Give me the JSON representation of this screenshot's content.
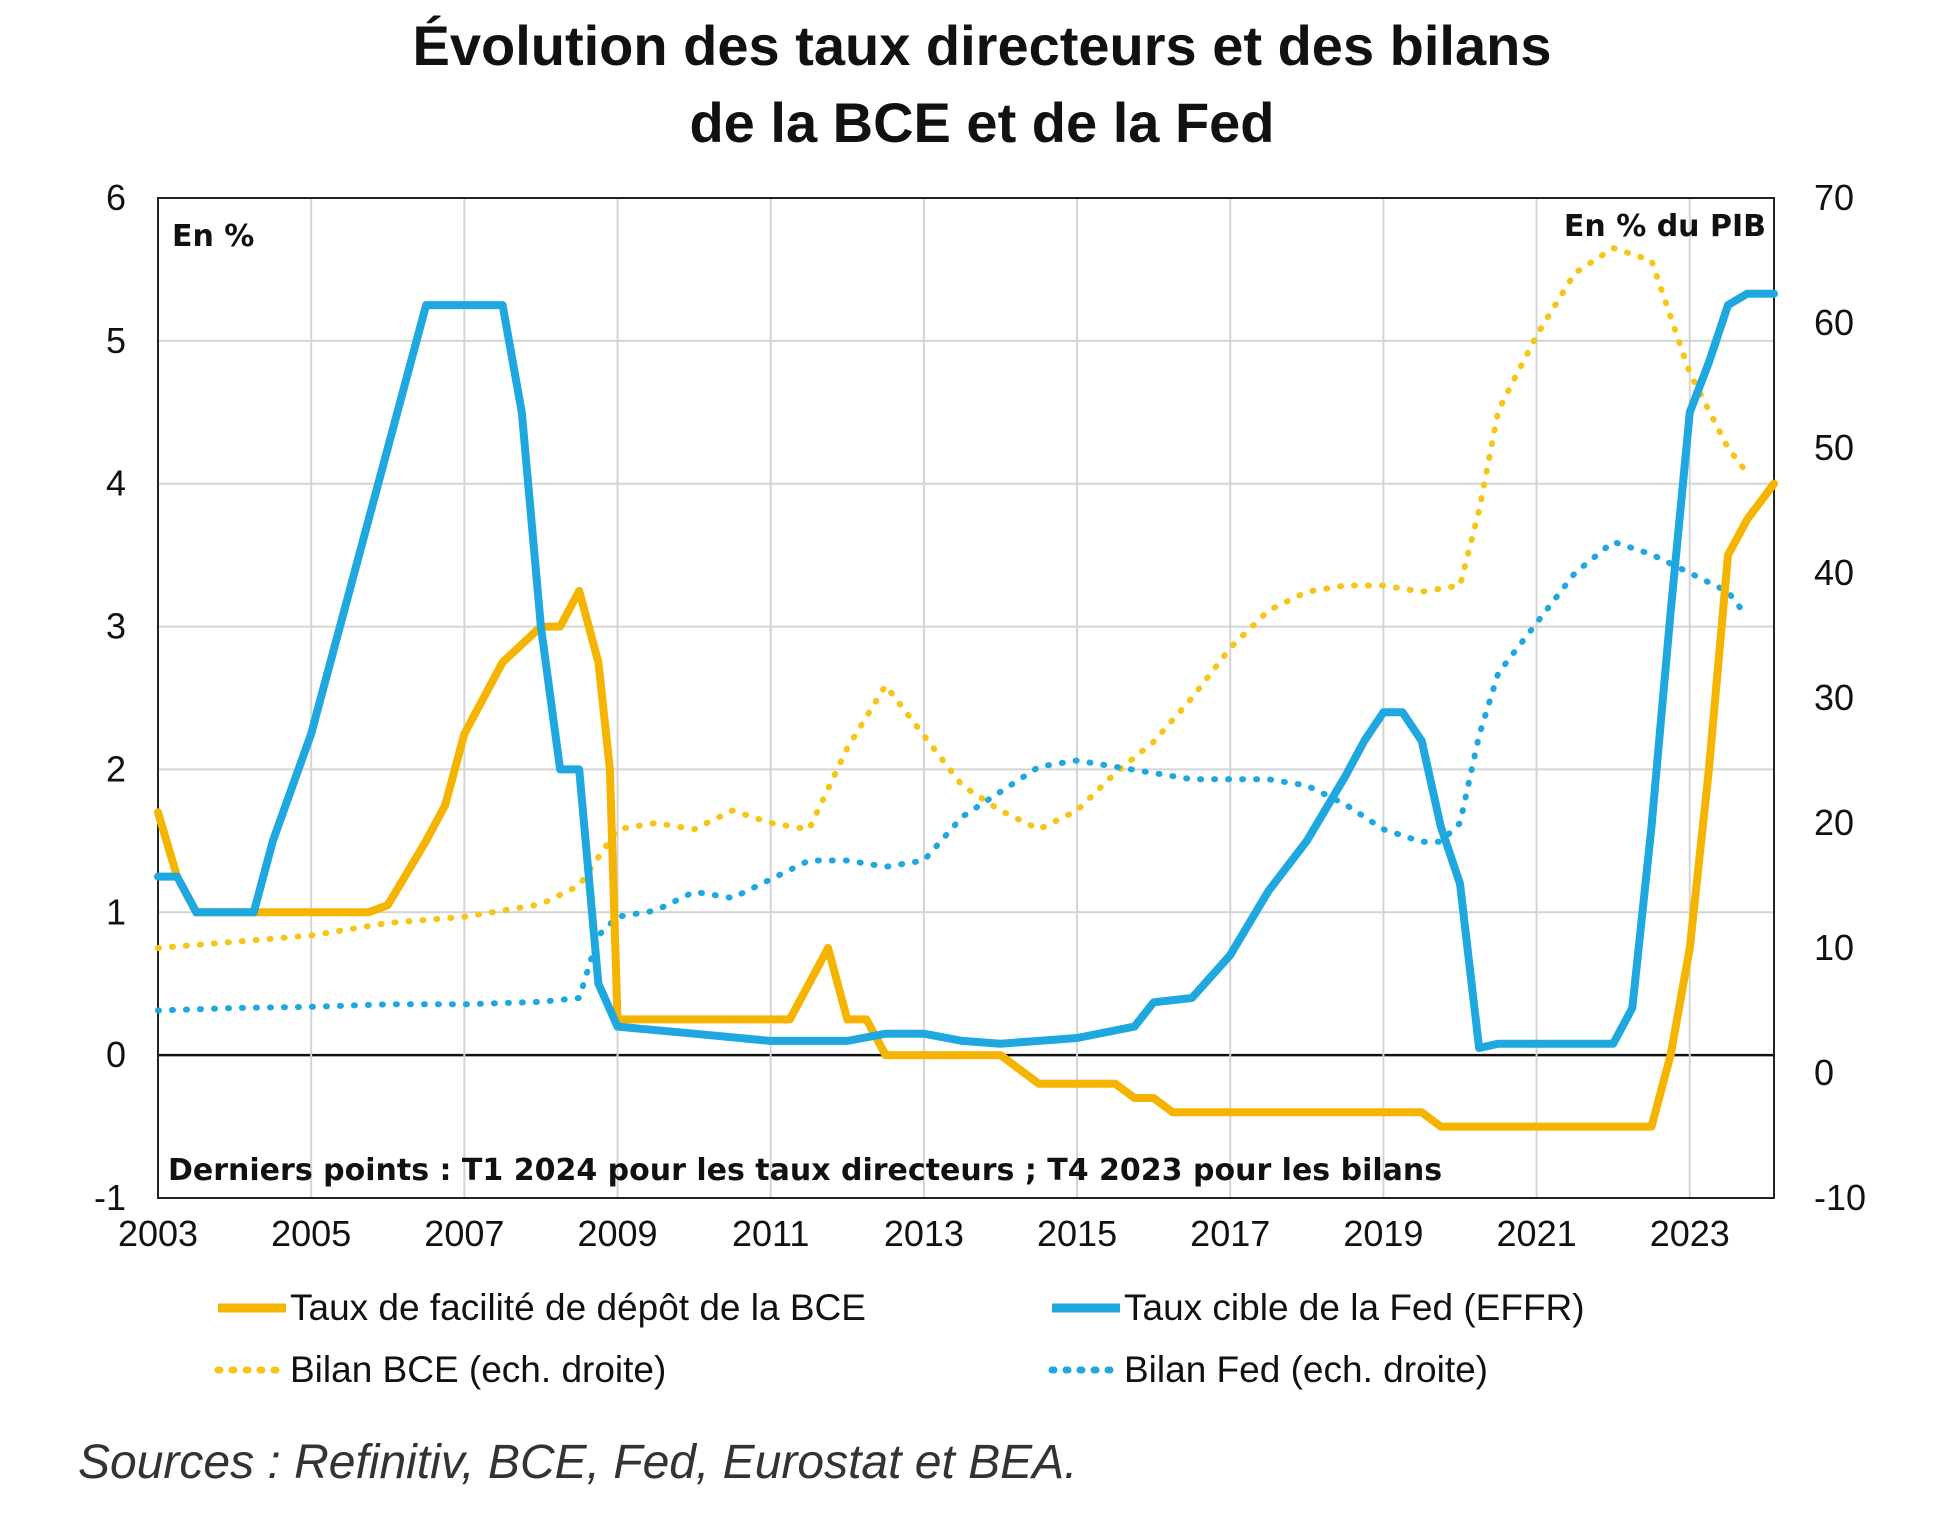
{
  "chart_data": {
    "type": "line",
    "title_line1": "Évolution des taux directeurs et des bilans",
    "title_line2": "de la BCE et de la Fed",
    "left_unit": "En %",
    "right_unit": "En % du PIB",
    "note": "Derniers points : T1 2024 pour les taux directeurs ; T4 2023 pour les bilans",
    "source": "Sources : Refinitiv, BCE, Fed, Eurostat et BEA.",
    "x_ticks": [
      "2003",
      "2005",
      "2007",
      "2009",
      "2011",
      "2013",
      "2015",
      "2017",
      "2019",
      "2021",
      "2023"
    ],
    "xlim": [
      2003,
      2024.1
    ],
    "y_left_ticks": [
      "6",
      "5",
      "4",
      "3",
      "2",
      "1",
      "0",
      "-1"
    ],
    "y_left_lim": [
      -1,
      6
    ],
    "y_right_ticks": [
      "70",
      "60",
      "50",
      "40",
      "30",
      "20",
      "10",
      "0",
      "-10"
    ],
    "y_right_lim": [
      -10,
      70
    ],
    "grid": true,
    "legend_position": "bottom",
    "series": [
      {
        "name": "Taux de facilité de dépôt de la BCE",
        "axis": "left",
        "style": "solid",
        "color": "#f5b400",
        "x": [
          2003.0,
          2003.25,
          2003.5,
          2004.0,
          2005.0,
          2005.75,
          2006.0,
          2006.5,
          2006.75,
          2007.0,
          2007.5,
          2008.0,
          2008.25,
          2008.5,
          2008.75,
          2008.9,
          2009.0,
          2009.25,
          2010.0,
          2011.0,
          2011.25,
          2011.5,
          2011.75,
          2012.0,
          2012.25,
          2012.5,
          2012.75,
          2013.0,
          2013.5,
          2014.0,
          2014.25,
          2014.5,
          2014.75,
          2015.0,
          2015.5,
          2015.75,
          2016.0,
          2016.25,
          2016.5,
          2017.0,
          2018.0,
          2019.0,
          2019.5,
          2019.75,
          2020.0,
          2021.0,
          2022.0,
          2022.5,
          2022.75,
          2023.0,
          2023.25,
          2023.5,
          2023.75,
          2024.1
        ],
        "values": [
          1.7,
          1.25,
          1.0,
          1.0,
          1.0,
          1.0,
          1.05,
          1.5,
          1.75,
          2.25,
          2.75,
          3.0,
          3.0,
          3.25,
          2.75,
          2.0,
          0.25,
          0.25,
          0.25,
          0.25,
          0.25,
          0.5,
          0.75,
          0.25,
          0.25,
          0.0,
          0.0,
          0.0,
          0.0,
          0.0,
          -0.1,
          -0.2,
          -0.2,
          -0.2,
          -0.2,
          -0.3,
          -0.3,
          -0.4,
          -0.4,
          -0.4,
          -0.4,
          -0.4,
          -0.4,
          -0.5,
          -0.5,
          -0.5,
          -0.5,
          -0.5,
          0.0,
          0.75,
          2.0,
          3.5,
          3.75,
          4.0
        ]
      },
      {
        "name": "Taux cible de la Fed (EFFR)",
        "axis": "left",
        "style": "solid",
        "color": "#1fa8df",
        "x": [
          2003.0,
          2003.25,
          2003.5,
          2004.25,
          2004.5,
          2005.0,
          2005.5,
          2006.0,
          2006.5,
          2007.0,
          2007.5,
          2007.75,
          2008.0,
          2008.25,
          2008.5,
          2008.75,
          2009.0,
          2010.0,
          2011.0,
          2011.5,
          2012.0,
          2012.5,
          2013.0,
          2013.5,
          2014.0,
          2014.5,
          2015.0,
          2015.75,
          2016.0,
          2016.5,
          2017.0,
          2017.5,
          2018.0,
          2018.5,
          2018.75,
          2019.0,
          2019.25,
          2019.5,
          2019.75,
          2020.0,
          2020.25,
          2020.5,
          2021.0,
          2021.5,
          2022.0,
          2022.25,
          2022.5,
          2022.75,
          2023.0,
          2023.25,
          2023.5,
          2023.75,
          2024.1
        ],
        "values": [
          1.25,
          1.25,
          1.0,
          1.0,
          1.5,
          2.25,
          3.25,
          4.25,
          5.25,
          5.25,
          5.25,
          4.5,
          3.0,
          2.0,
          2.0,
          0.5,
          0.2,
          0.15,
          0.1,
          0.1,
          0.1,
          0.15,
          0.15,
          0.1,
          0.08,
          0.1,
          0.12,
          0.2,
          0.37,
          0.4,
          0.7,
          1.15,
          1.5,
          1.95,
          2.2,
          2.4,
          2.4,
          2.2,
          1.6,
          1.2,
          0.05,
          0.08,
          0.08,
          0.08,
          0.08,
          0.33,
          1.6,
          3.1,
          4.5,
          4.85,
          5.25,
          5.33,
          5.33
        ]
      },
      {
        "name": "Bilan BCE (ech. droite)",
        "axis": "right",
        "style": "dotted",
        "color": "#f5c518",
        "x": [
          2003.0,
          2004.0,
          2005.0,
          2006.0,
          2007.0,
          2008.0,
          2008.5,
          2009.0,
          2009.5,
          2010.0,
          2010.5,
          2011.0,
          2011.5,
          2012.0,
          2012.5,
          2013.0,
          2013.5,
          2014.0,
          2014.5,
          2015.0,
          2015.5,
          2016.0,
          2016.5,
          2017.0,
          2017.5,
          2018.0,
          2018.5,
          2019.0,
          2019.5,
          2020.0,
          2020.25,
          2020.5,
          2021.0,
          2021.5,
          2022.0,
          2022.5,
          2023.0,
          2023.5,
          2023.75
        ],
        "values": [
          10,
          10.5,
          11,
          12,
          12.5,
          13.5,
          15,
          19.5,
          20,
          19.5,
          21,
          20,
          19.5,
          26,
          31,
          27,
          23,
          21,
          19.5,
          21,
          24,
          26.5,
          30,
          34,
          37,
          38.5,
          39,
          39,
          38.5,
          39,
          45,
          53,
          59,
          64,
          66,
          65,
          56,
          50,
          48
        ]
      },
      {
        "name": "Bilan Fed (ech. droite)",
        "axis": "right",
        "style": "dotted",
        "color": "#1fa8df",
        "x": [
          2003.0,
          2004.0,
          2005.0,
          2006.0,
          2007.0,
          2008.0,
          2008.5,
          2008.75,
          2009.0,
          2009.5,
          2010.0,
          2010.5,
          2011.0,
          2011.5,
          2012.0,
          2012.5,
          2013.0,
          2013.5,
          2014.0,
          2014.5,
          2015.0,
          2015.5,
          2016.0,
          2016.5,
          2017.0,
          2017.5,
          2018.0,
          2018.5,
          2019.0,
          2019.5,
          2019.75,
          2020.0,
          2020.25,
          2020.5,
          2021.0,
          2021.5,
          2022.0,
          2022.5,
          2023.0,
          2023.5,
          2023.75
        ],
        "values": [
          5,
          5.2,
          5.3,
          5.5,
          5.5,
          5.7,
          6,
          11,
          12.5,
          13,
          14.5,
          14,
          15.5,
          17,
          17,
          16.5,
          17,
          20.5,
          22.5,
          24.5,
          25,
          24.5,
          24,
          23.5,
          23.5,
          23.5,
          23,
          21.5,
          19.5,
          18.5,
          18.5,
          20,
          27,
          32,
          36,
          40,
          42.5,
          41.5,
          40,
          38.5,
          36.5
        ]
      }
    ]
  }
}
